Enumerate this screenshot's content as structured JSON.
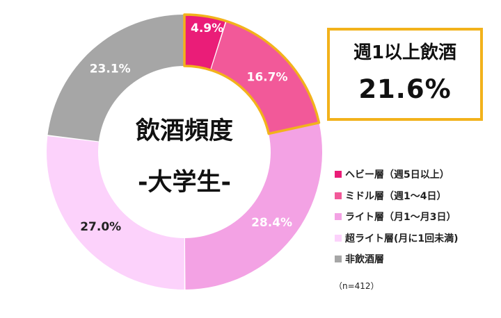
{
  "chart_data": {
    "type": "pie",
    "subtype": "donut",
    "title": "飲酒頻度",
    "subtitle": "-大学生-",
    "direction": "clockwise from top",
    "slices": [
      {
        "label": "ヘビー層（週5日以上）",
        "value": 4.9,
        "value_label": "4.9%",
        "color": "#ea1d78",
        "label_color": "#ffffff"
      },
      {
        "label": "ミドル層（週1～4日）",
        "value": 16.7,
        "value_label": "16.7%",
        "color": "#f25999",
        "label_color": "#ffffff"
      },
      {
        "label": "ライト層（月1～月3日）",
        "value": 28.4,
        "value_label": "28.4%",
        "color": "#f3a2e4",
        "label_color": "#ffffff"
      },
      {
        "label": "超ライト層(月に1回未満)",
        "value": 27.0,
        "value_label": "27.0%",
        "color": "#fcd2fb",
        "label_color": "#222222"
      },
      {
        "label": "非飲酒層",
        "value": 23.1,
        "value_label": "23.1%",
        "color": "#a6a6a6",
        "label_color": "#ffffff"
      }
    ],
    "highlight": {
      "slices": [
        0,
        1
      ],
      "outline_color": "#f2b21b",
      "title": "週1以上飲酒",
      "value": "21.6%"
    },
    "legend_position": "right",
    "note": "（n=412）"
  }
}
